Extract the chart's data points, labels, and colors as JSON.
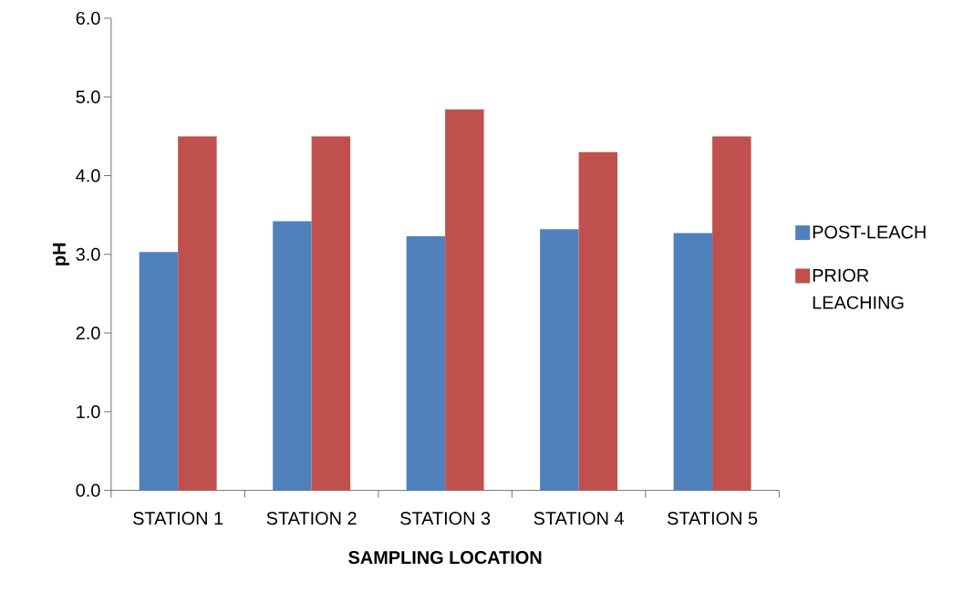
{
  "chart_data": {
    "type": "bar",
    "xlabel": "SAMPLING LOCATION",
    "ylabel": "pH",
    "categories": [
      "STATION 1",
      "STATION 2",
      "STATION 3",
      "STATION 4",
      "STATION 5"
    ],
    "series": [
      {
        "name": "POST-LEACH",
        "color": "#4f81bd",
        "values": [
          3.03,
          3.42,
          3.23,
          3.32,
          3.27
        ]
      },
      {
        "name": "PRIOR LEACHING",
        "color": "#c0504d",
        "values": [
          4.5,
          4.5,
          4.84,
          4.3,
          4.5
        ]
      }
    ],
    "ylim": [
      0,
      6
    ],
    "yticks": [
      {
        "value": 0,
        "label": "0.0"
      },
      {
        "value": 1,
        "label": "1.0"
      },
      {
        "value": 2,
        "label": "2.0"
      },
      {
        "value": 3,
        "label": "3.0"
      },
      {
        "value": 4,
        "label": "4.0"
      },
      {
        "value": 5,
        "label": "5.0"
      },
      {
        "value": 6,
        "label": "6.0"
      }
    ],
    "grid": false,
    "legend": "right"
  }
}
